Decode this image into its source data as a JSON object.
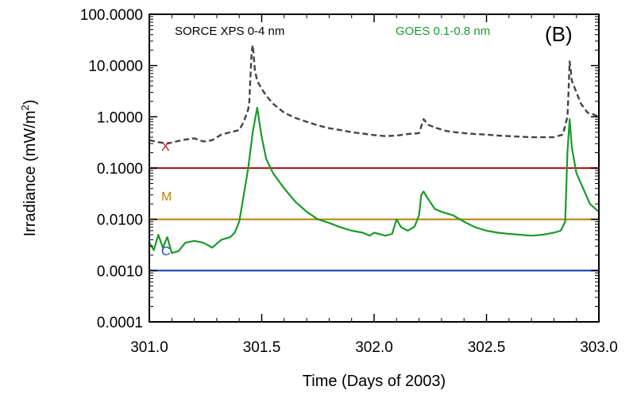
{
  "chart_data": {
    "type": "line",
    "panel_label": "(B)",
    "xlabel": "Time (Days of 2003)",
    "ylabel": "Irradiance (mW/m²)",
    "ylabel_parts": {
      "main": "Irradiance (mW/m",
      "sup": "2",
      "end": ")"
    },
    "xscale": "linear",
    "yscale": "log",
    "xlim": [
      301.0,
      303.0
    ],
    "ylim": [
      0.0001,
      100
    ],
    "x_ticks": [
      301.0,
      301.5,
      302.0,
      302.5,
      303.0
    ],
    "x_tick_labels": [
      "301.0",
      "301.5",
      "302.0",
      "302.5",
      "303.0"
    ],
    "y_ticks": [
      0.0001,
      0.001,
      0.01,
      0.1,
      1,
      10,
      100
    ],
    "y_tick_labels": [
      "0.0001",
      "0.0010",
      "0.0100",
      "0.1000",
      "1.0000",
      "10.0000",
      "100.0000"
    ],
    "thresholds": [
      {
        "name": "X",
        "value": 0.1,
        "color": "#a52222"
      },
      {
        "name": "M",
        "value": 0.01,
        "color": "#b8860b"
      },
      {
        "name": "C",
        "value": 0.001,
        "color": "#1a3fb0"
      }
    ],
    "series": [
      {
        "name": "SORCE XPS 0-4 nm",
        "color": "#444444",
        "style": "dashed",
        "x": [
          301.0,
          301.04,
          301.08,
          301.12,
          301.16,
          301.2,
          301.24,
          301.28,
          301.32,
          301.36,
          301.4,
          301.42,
          301.44,
          301.445,
          301.45,
          301.455,
          301.46,
          301.47,
          301.48,
          301.5,
          301.52,
          301.55,
          301.6,
          301.65,
          301.7,
          301.75,
          301.8,
          301.85,
          301.9,
          301.95,
          302.0,
          302.05,
          302.1,
          302.15,
          302.2,
          302.22,
          302.24,
          302.28,
          302.32,
          302.36,
          302.4,
          302.45,
          302.5,
          302.55,
          302.6,
          302.65,
          302.7,
          302.75,
          302.8,
          302.84,
          302.86,
          302.865,
          302.87,
          302.875,
          302.88,
          302.9,
          302.92,
          302.95,
          302.98,
          303.0
        ],
        "y": [
          0.35,
          0.32,
          0.3,
          0.33,
          0.36,
          0.38,
          0.33,
          0.35,
          0.45,
          0.5,
          0.55,
          0.8,
          1.4,
          2.0,
          6.0,
          18.0,
          25.0,
          8.0,
          5.0,
          3.5,
          2.6,
          1.8,
          1.2,
          0.95,
          0.8,
          0.68,
          0.6,
          0.55,
          0.5,
          0.47,
          0.44,
          0.42,
          0.43,
          0.46,
          0.48,
          0.9,
          0.7,
          0.6,
          0.53,
          0.5,
          0.48,
          0.46,
          0.45,
          0.43,
          0.42,
          0.41,
          0.4,
          0.4,
          0.4,
          0.45,
          1.0,
          3.0,
          12.0,
          8.0,
          5.0,
          3.0,
          1.8,
          1.2,
          1.1,
          1.0
        ]
      },
      {
        "name": "GOES 0.1-0.8 nm",
        "color": "#1a9a2a",
        "style": "solid",
        "x": [
          301.0,
          301.02,
          301.04,
          301.06,
          301.08,
          301.1,
          301.13,
          301.16,
          301.2,
          301.24,
          301.28,
          301.32,
          301.36,
          301.38,
          301.4,
          301.42,
          301.44,
          301.46,
          301.48,
          301.5,
          301.52,
          301.55,
          301.6,
          301.65,
          301.7,
          301.75,
          301.8,
          301.85,
          301.9,
          301.95,
          301.98,
          302.0,
          302.02,
          302.05,
          302.08,
          302.1,
          302.12,
          302.15,
          302.18,
          302.2,
          302.21,
          302.22,
          302.24,
          302.27,
          302.3,
          302.35,
          302.4,
          302.45,
          302.5,
          302.55,
          302.6,
          302.65,
          302.7,
          302.75,
          302.8,
          302.83,
          302.85,
          302.86,
          302.87,
          302.88,
          302.9,
          302.93,
          302.96,
          303.0
        ],
        "y": [
          0.0035,
          0.0025,
          0.005,
          0.0028,
          0.0045,
          0.0022,
          0.0024,
          0.0035,
          0.0038,
          0.0035,
          0.0028,
          0.004,
          0.0045,
          0.0055,
          0.009,
          0.03,
          0.1,
          0.5,
          1.5,
          0.4,
          0.15,
          0.08,
          0.04,
          0.022,
          0.014,
          0.01,
          0.0085,
          0.007,
          0.006,
          0.0055,
          0.0048,
          0.0055,
          0.0052,
          0.0048,
          0.0052,
          0.01,
          0.007,
          0.006,
          0.0072,
          0.012,
          0.03,
          0.035,
          0.025,
          0.016,
          0.014,
          0.012,
          0.009,
          0.007,
          0.006,
          0.0055,
          0.0052,
          0.005,
          0.0048,
          0.005,
          0.0055,
          0.006,
          0.009,
          0.2,
          0.9,
          0.25,
          0.08,
          0.04,
          0.02,
          0.014
        ]
      }
    ]
  }
}
